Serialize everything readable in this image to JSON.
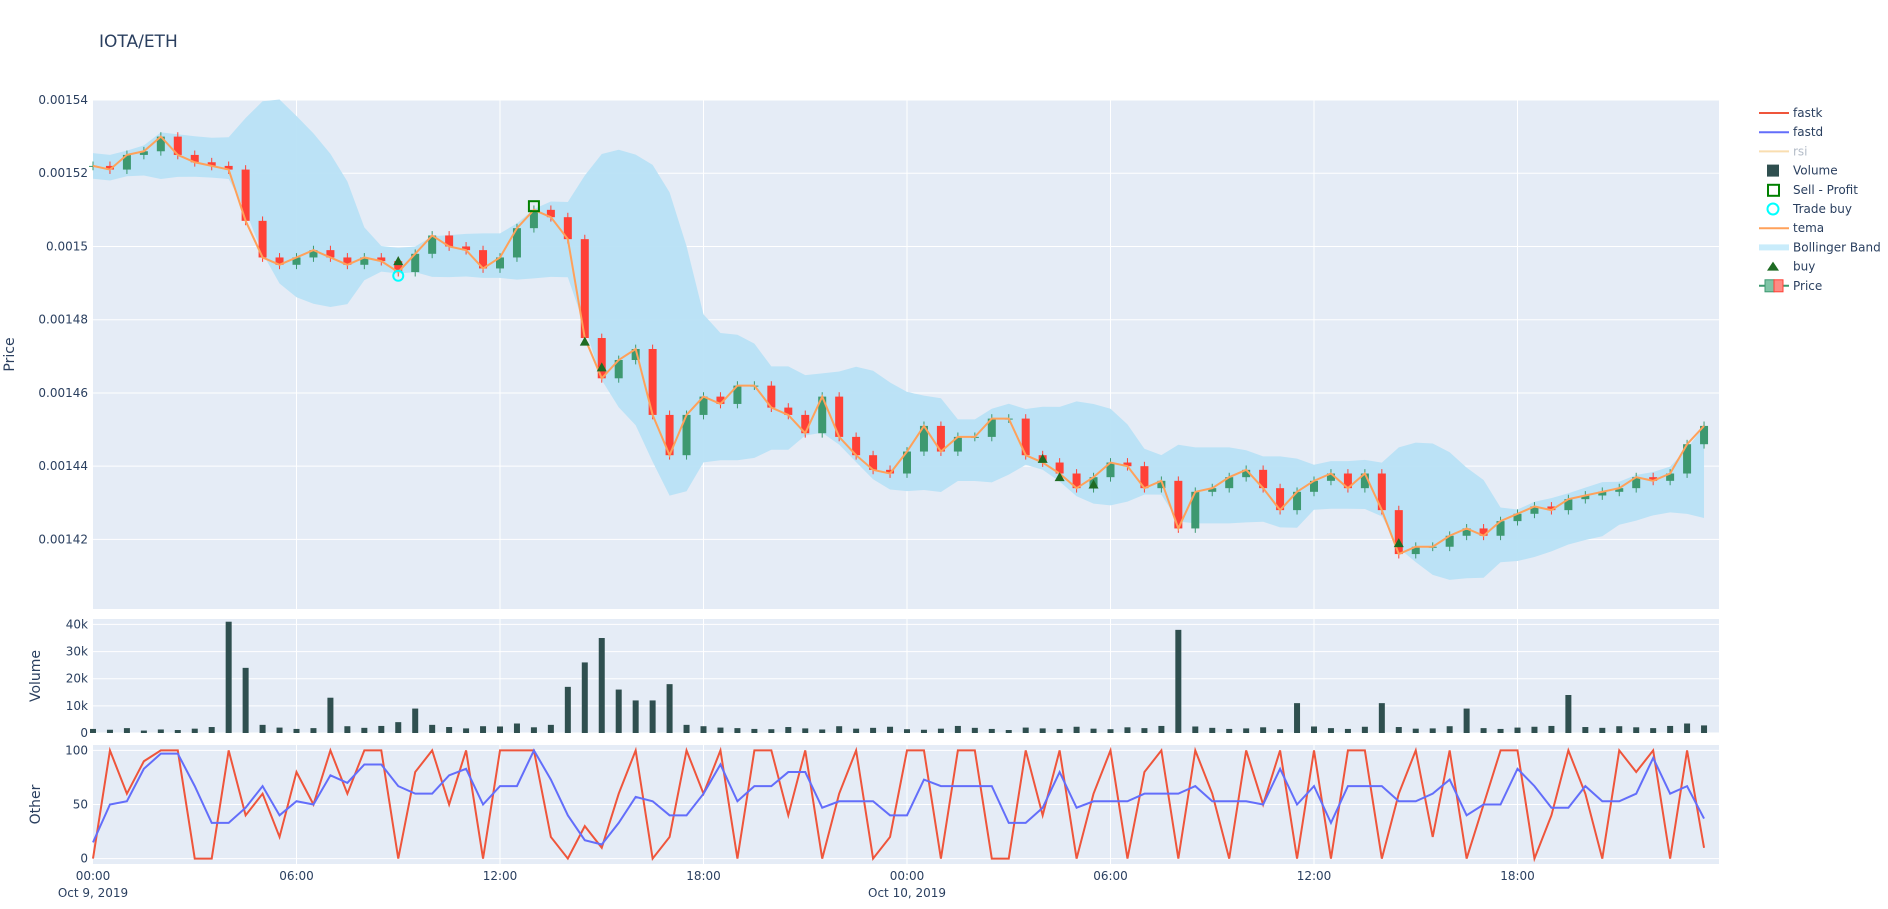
{
  "title": "IOTA/ETH",
  "colors": {
    "bg": "#e5ecf6",
    "increasing": "#3d9970",
    "decreasing": "#ff4136",
    "fastk": "#ef553b",
    "fastd": "#636efa",
    "rsi": "#f9deb0",
    "volume": "#2f4f4f",
    "sell_profit": "#008000",
    "trade_buy": "#00ffff",
    "tema": "#ffa15a",
    "bollinger": "#b8e2f6",
    "buy": "#1e6b23"
  },
  "chart_data": [
    {
      "type": "candlestick",
      "ylabel": "Price",
      "ylim": [
        0.001401,
        0.00154
      ],
      "yticks": [
        "0.00154",
        "0.00152",
        "0.0015",
        "0.00148",
        "0.00146",
        "0.00144",
        "0.00142"
      ],
      "ytick_values": [
        0.00154,
        0.00152,
        0.0015,
        0.00148,
        0.00146,
        0.00144,
        0.00142
      ],
      "start": "2019-10-09 00:00",
      "interval_minutes": 30,
      "close": [
        0.001522,
        0.001521,
        0.001525,
        0.001526,
        0.00153,
        0.001525,
        0.001523,
        0.001522,
        0.001521,
        0.001507,
        0.001497,
        0.001495,
        0.001497,
        0.001499,
        0.001497,
        0.001495,
        0.001497,
        0.001496,
        0.001493,
        0.001498,
        0.001503,
        0.0015,
        0.001499,
        0.001494,
        0.001497,
        0.001505,
        0.00151,
        0.001508,
        0.001502,
        0.001475,
        0.001464,
        0.001469,
        0.001472,
        0.001454,
        0.001443,
        0.001454,
        0.001459,
        0.001457,
        0.001462,
        0.001462,
        0.001456,
        0.001454,
        0.001449,
        0.001459,
        0.001448,
        0.001443,
        0.001439,
        0.001438,
        0.001444,
        0.001451,
        0.001444,
        0.001448,
        0.001448,
        0.001453,
        0.001453,
        0.001443,
        0.001441,
        0.001438,
        0.001434,
        0.001437,
        0.001441,
        0.00144,
        0.001434,
        0.001436,
        0.001423,
        0.001433,
        0.001434,
        0.001437,
        0.001439,
        0.001434,
        0.001428,
        0.001433,
        0.001436,
        0.001438,
        0.001434,
        0.001438,
        0.001428,
        0.001416,
        0.001418,
        0.001418,
        0.001421,
        0.001423,
        0.001421,
        0.001425,
        0.001427,
        0.001429,
        0.001428,
        0.001431,
        0.001432,
        0.001433,
        0.001434,
        0.001437,
        0.001436,
        0.001438,
        0.001446,
        0.001451
      ],
      "buy": [
        {
          "x": "2019-10-09 09:00",
          "y": 0.001496
        },
        {
          "x": "2019-10-09 14:30",
          "y": 0.001474
        },
        {
          "x": "2019-10-09 15:00",
          "y": 0.001467
        },
        {
          "x": "2019-10-10 04:00",
          "y": 0.001442
        },
        {
          "x": "2019-10-10 04:30",
          "y": 0.001437
        },
        {
          "x": "2019-10-10 05:30",
          "y": 0.001435
        },
        {
          "x": "2019-10-10 14:30",
          "y": 0.001419
        }
      ],
      "trade_buy": [
        {
          "x": "2019-10-09 09:00",
          "y": 0.001492
        }
      ],
      "sell_profit": [
        {
          "x": "2019-10-09 13:00",
          "y": 0.001511
        }
      ]
    },
    {
      "type": "bar",
      "ylabel": "Volume",
      "ylim": [
        0,
        42000
      ],
      "yticks": [
        "40k",
        "30k",
        "20k",
        "10k",
        "0"
      ],
      "ytick_values": [
        40000,
        30000,
        20000,
        10000,
        0
      ],
      "values": [
        1500,
        1200,
        1800,
        900,
        1300,
        1100,
        1600,
        2200,
        41000,
        24000,
        3000,
        2000,
        1500,
        1800,
        13000,
        2500,
        1900,
        2600,
        4000,
        9000,
        3000,
        2200,
        1700,
        2500,
        2400,
        3500,
        2100,
        3000,
        17000,
        26000,
        35000,
        16000,
        12000,
        12000,
        18000,
        3000,
        2500,
        2000,
        1800,
        1500,
        1400,
        2200,
        1700,
        1300,
        2500,
        1600,
        1900,
        2300,
        1400,
        1200,
        1600,
        2600,
        1900,
        1500,
        1100,
        2000,
        1700,
        1500,
        2300,
        1600,
        1400,
        2100,
        1800,
        2600,
        38000,
        2400,
        1900,
        1500,
        1700,
        2100,
        1400,
        11000,
        2400,
        1800,
        1500,
        2300,
        11000,
        2200,
        1600,
        1700,
        2500,
        9000,
        1800,
        1500,
        2000,
        2300,
        2600,
        14000,
        2200,
        1900,
        2500,
        2100,
        1800,
        2600,
        3500,
        2800
      ]
    },
    {
      "type": "line",
      "ylabel": "Other",
      "ylim": [
        -5,
        105
      ],
      "yticks": [
        "100",
        "50",
        "0"
      ],
      "ytick_values": [
        100,
        50,
        0
      ],
      "xticks": [
        "00:00",
        "06:00",
        "12:00",
        "18:00",
        "00:00",
        "06:00",
        "12:00",
        "18:00"
      ],
      "xtick_dates": [
        "Oct 9, 2019",
        "",
        "",
        "",
        "Oct 10, 2019",
        "",
        "",
        ""
      ],
      "series": [
        {
          "name": "fastk",
          "values": [
            0,
            100,
            60,
            90,
            100,
            100,
            0,
            0,
            100,
            40,
            60,
            20,
            80,
            50,
            100,
            60,
            100,
            100,
            0,
            80,
            100,
            50,
            100,
            0,
            100,
            100,
            100,
            20,
            0,
            30,
            10,
            60,
            100,
            0,
            20,
            100,
            60,
            100,
            0,
            100,
            100,
            40,
            100,
            0,
            60,
            100,
            0,
            20,
            100,
            100,
            0,
            100,
            100,
            0,
            0,
            100,
            40,
            100,
            0,
            60,
            100,
            0,
            80,
            100,
            0,
            100,
            60,
            0,
            100,
            50,
            100,
            0,
            100,
            0,
            100,
            100,
            0,
            60,
            100,
            20,
            100,
            0,
            50,
            100,
            100,
            0,
            40,
            100,
            60,
            0,
            100,
            80,
            100,
            0,
            100,
            10
          ]
        },
        {
          "name": "fastd",
          "values": [
            15,
            50,
            53,
            83,
            97,
            97,
            67,
            33,
            33,
            47,
            67,
            40,
            53,
            50,
            77,
            70,
            87,
            87,
            67,
            60,
            60,
            77,
            83,
            50,
            67,
            67,
            100,
            73,
            40,
            17,
            13,
            33,
            57,
            53,
            40,
            40,
            60,
            87,
            53,
            67,
            67,
            80,
            80,
            47,
            53,
            53,
            53,
            40,
            40,
            73,
            67,
            67,
            67,
            67,
            33,
            33,
            47,
            80,
            47,
            53,
            53,
            53,
            60,
            60,
            60,
            67,
            53,
            53,
            53,
            50,
            83,
            50,
            67,
            33,
            67,
            67,
            67,
            53,
            53,
            60,
            73,
            40,
            50,
            50,
            83,
            67,
            47,
            47,
            67,
            53,
            53,
            60,
            93,
            60,
            67,
            37
          ]
        }
      ]
    }
  ],
  "legend": [
    {
      "label": "fastk",
      "kind": "line",
      "color": "#ef553b"
    },
    {
      "label": "fastd",
      "kind": "line",
      "color": "#636efa"
    },
    {
      "label": "rsi",
      "kind": "line",
      "color": "#f9deb0",
      "muted": true
    },
    {
      "label": "Volume",
      "kind": "square",
      "color": "#2f4f4f"
    },
    {
      "label": "Sell - Profit",
      "kind": "open-square",
      "color": "#008000"
    },
    {
      "label": "Trade buy",
      "kind": "circle",
      "color": "#00ffff"
    },
    {
      "label": "tema",
      "kind": "line",
      "color": "#ffa15a"
    },
    {
      "label": "Bollinger Band",
      "kind": "band",
      "color": "#c9ecfb"
    },
    {
      "label": "buy",
      "kind": "triangle",
      "color": "#1e6b23"
    },
    {
      "label": "Price",
      "kind": "candle",
      "color": "#3d9970"
    }
  ]
}
